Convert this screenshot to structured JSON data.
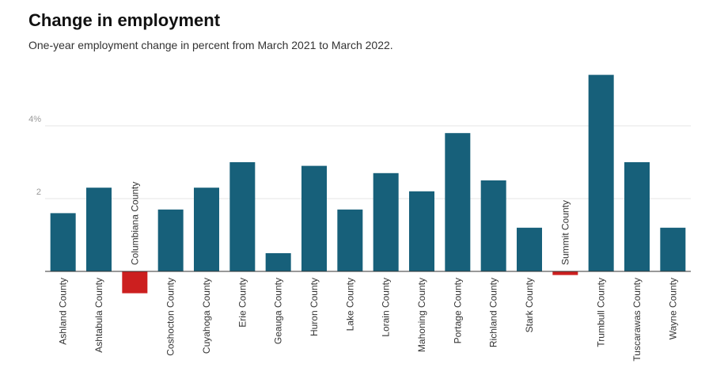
{
  "chart_data": {
    "type": "bar",
    "title": "Change in employment",
    "subtitle": "One-year employment change in percent from March 2021 to March 2022.",
    "categories": [
      "Ashland County",
      "Ashtabula County",
      "Columbiana County",
      "Coshocton County",
      "Cuyahoga County",
      "Erie County",
      "Geauga County",
      "Huron County",
      "Lake County",
      "Lorain County",
      "Mahoning County",
      "Portage County",
      "Richland County",
      "Stark County",
      "Summit County",
      "Trumbull County",
      "Tuscarawas County",
      "Wayne County"
    ],
    "values": [
      1.6,
      2.3,
      -0.6,
      1.7,
      2.3,
      3.0,
      0.5,
      2.9,
      1.7,
      2.7,
      2.2,
      3.8,
      2.5,
      1.2,
      -0.1,
      5.4,
      3.0,
      1.2
    ],
    "color": "#17607a",
    "negative_color": "#cc1f1f",
    "ylim": [
      -0.7,
      5.5
    ],
    "yticks": [
      2,
      {
        "value": 4,
        "label": "4%"
      }
    ],
    "grid": true
  }
}
